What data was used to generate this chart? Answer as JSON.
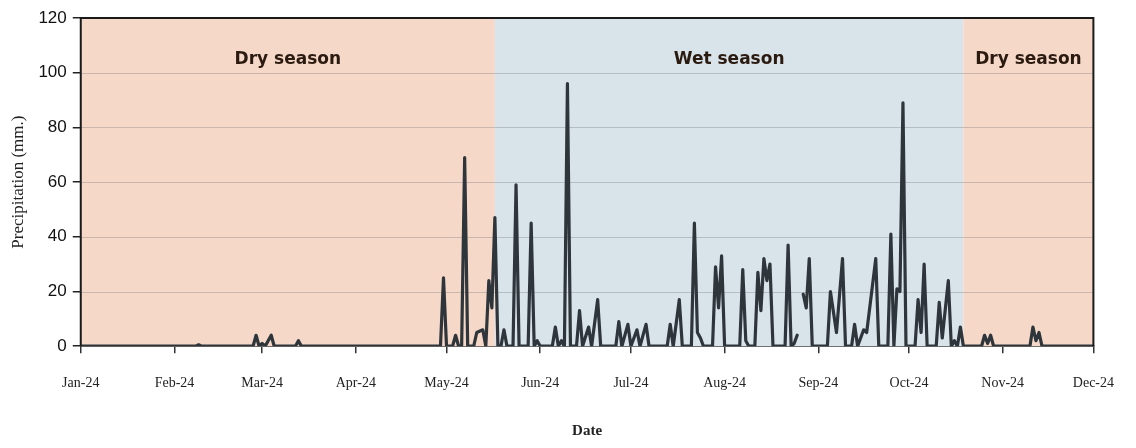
{
  "chart_data": {
    "type": "line",
    "xlabel": "Date",
    "ylabel": "Precipitation (mm.)",
    "xlim": [
      "2024-01-01",
      "2024-12-01"
    ],
    "ylim": [
      0,
      120
    ],
    "yticks": [
      0,
      20,
      40,
      60,
      80,
      100,
      120
    ],
    "xticks": [
      {
        "value": "2024-01-01",
        "label": "Jan-24"
      },
      {
        "value": "2024-02-01",
        "label": "Feb-24"
      },
      {
        "value": "2024-03-01",
        "label": "Mar-24"
      },
      {
        "value": "2024-04-01",
        "label": "Apr-24"
      },
      {
        "value": "2024-05-01",
        "label": "May-24"
      },
      {
        "value": "2024-06-01",
        "label": "Jun-24"
      },
      {
        "value": "2024-07-01",
        "label": "Jul-24"
      },
      {
        "value": "2024-08-01",
        "label": "Aug-24"
      },
      {
        "value": "2024-09-01",
        "label": "Sep-24"
      },
      {
        "value": "2024-10-01",
        "label": "Oct-24"
      },
      {
        "value": "2024-11-01",
        "label": "Nov-24"
      },
      {
        "value": "2024-12-01",
        "label": "Dec-24"
      }
    ],
    "grid": "y",
    "legend": false,
    "marker": "none",
    "line_style": "solid",
    "bands": [
      {
        "axis": "x",
        "from": "2024-01-01",
        "to": "2024-05-17",
        "label": "Dry season",
        "color": "#f6d8c8"
      },
      {
        "axis": "x",
        "from": "2024-05-17",
        "to": "2024-10-19",
        "label": "Wet season",
        "color": "#d9e3ea"
      },
      {
        "axis": "x",
        "from": "2024-10-19",
        "to": "2024-12-01",
        "label": "Dry season",
        "color": "#f6d8c8"
      }
    ],
    "series": [
      {
        "color": "#2f363b",
        "x": [
          "2024-01-01",
          "2024-02-08",
          "2024-02-09",
          "2024-02-10",
          "2024-02-27",
          "2024-02-28",
          "2024-02-29",
          "2024-03-01",
          "2024-03-02",
          "2024-03-04",
          "2024-03-05",
          "2024-03-12",
          "2024-03-13",
          "2024-03-14",
          "2024-04-29",
          "2024-04-30",
          "2024-05-01",
          "2024-05-03",
          "2024-05-04",
          "2024-05-05",
          "2024-05-06",
          "2024-05-07",
          "2024-05-08",
          "2024-05-10",
          "2024-05-11",
          "2024-05-13",
          "2024-05-14",
          "2024-05-15",
          "2024-05-16",
          "2024-05-17",
          "2024-05-18",
          "2024-05-19",
          "2024-05-20",
          "2024-05-21",
          "2024-05-23",
          "2024-05-24",
          "2024-05-25",
          "2024-05-28",
          "2024-05-29",
          "2024-05-30",
          "2024-05-31",
          "2024-06-01",
          "2024-06-05",
          "2024-06-06",
          "2024-06-07",
          "2024-06-08",
          "2024-06-09",
          "2024-06-10",
          "2024-06-11",
          "2024-06-13",
          "2024-06-14",
          "2024-06-15",
          "2024-06-17",
          "2024-06-18",
          "2024-06-20",
          "2024-06-21",
          "2024-06-26",
          "2024-06-27",
          "2024-06-28",
          "2024-06-30",
          "2024-07-01",
          "2024-07-03",
          "2024-07-04",
          "2024-07-06",
          "2024-07-07",
          "2024-07-13",
          "2024-07-14",
          "2024-07-15",
          "2024-07-17",
          "2024-07-18",
          "2024-07-21",
          "2024-07-22",
          "2024-07-23",
          "2024-07-24",
          "2024-07-25",
          "2024-07-28",
          "2024-07-29",
          "2024-07-30",
          "2024-07-31",
          "2024-08-01",
          "2024-08-06",
          "2024-08-07",
          "2024-08-08",
          "2024-08-09",
          "2024-08-11",
          "2024-08-12",
          "2024-08-13",
          "2024-08-14",
          "2024-08-15",
          "2024-08-16",
          "2024-08-17",
          "2024-08-21",
          "2024-08-22",
          "2024-08-23",
          "2024-08-24",
          "2024-08-25",
          "2024-08-26",
          "2024-08-27",
          "2024-08-28",
          "2024-08-29",
          "2024-08-30",
          "2024-09-04",
          "2024-09-05",
          "2024-09-07",
          "2024-09-09",
          "2024-09-10",
          "2024-09-12",
          "2024-09-13",
          "2024-09-14",
          "2024-09-16",
          "2024-09-17",
          "2024-09-20",
          "2024-09-21",
          "2024-09-24",
          "2024-09-25",
          "2024-09-26",
          "2024-09-27",
          "2024-09-28",
          "2024-09-29",
          "2024-09-30",
          "2024-10-03",
          "2024-10-04",
          "2024-10-05",
          "2024-10-06",
          "2024-10-07",
          "2024-10-10",
          "2024-10-11",
          "2024-10-12",
          "2024-10-14",
          "2024-10-15",
          "2024-10-16",
          "2024-10-17",
          "2024-10-18",
          "2024-10-19",
          "2024-10-25",
          "2024-10-26",
          "2024-10-27",
          "2024-10-28",
          "2024-10-29",
          "2024-11-10",
          "2024-11-11",
          "2024-11-12",
          "2024-11-13",
          "2024-11-14",
          "2024-12-01"
        ],
        "values": [
          0,
          0,
          0.5,
          0,
          0,
          4,
          0,
          1,
          0,
          4,
          0,
          0,
          2,
          0,
          0,
          25,
          0,
          0,
          4,
          0,
          0,
          69,
          0,
          0,
          5,
          6,
          0,
          24,
          14,
          47,
          0,
          0,
          6,
          0,
          0,
          59,
          0,
          0,
          45,
          0,
          2,
          0,
          0,
          7,
          0,
          2,
          0,
          96,
          0,
          0,
          13,
          0,
          7,
          0,
          17,
          0,
          0,
          9,
          0,
          8,
          0,
          6,
          0,
          8,
          0,
          0,
          8,
          0,
          17,
          0,
          0,
          45,
          5,
          3,
          0,
          0,
          29,
          14,
          33,
          0,
          0,
          28,
          2,
          0,
          0,
          27,
          13,
          32,
          24,
          30,
          0,
          0,
          37,
          0,
          1,
          4,
          null,
          19,
          14,
          32,
          0,
          0,
          20,
          5,
          32,
          0,
          0,
          8,
          0,
          6,
          5,
          32,
          0,
          0,
          41,
          0,
          21,
          20,
          89,
          0,
          0,
          17,
          5,
          30,
          0,
          0,
          16,
          3,
          24,
          0,
          2,
          0,
          7,
          0,
          0,
          4,
          1,
          4,
          0,
          0,
          7,
          2,
          5,
          0,
          0
        ]
      }
    ]
  }
}
